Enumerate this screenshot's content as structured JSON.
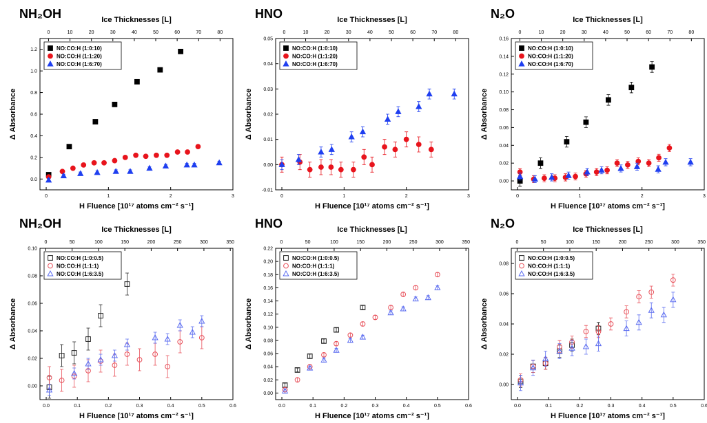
{
  "figure": {
    "xlabel_bottom": "H Fluence [10¹⁷ atoms cm⁻² s⁻¹]",
    "xlabel_top": "Ice Thicknesses [L]",
    "ylabel": "Δ Absorbance"
  },
  "colors": {
    "black_series": "#000000",
    "red_series": "#e8141c",
    "blue_series": "#1f3ff0",
    "open_black": "#222222",
    "open_red": "#e8505a",
    "open_blue": "#5b6cf0"
  },
  "chart_data": [
    {
      "type": "scatter",
      "title": "NH₂OH",
      "xlabel": "H Fluence [10¹⁷ atoms cm⁻² s⁻¹]",
      "x2label": "Ice Thicknesses [L]",
      "ylabel": "Δ Absorbance",
      "xlim": [
        -0.1,
        3
      ],
      "xticks": [
        "0",
        "1",
        "2",
        "3"
      ],
      "x2lim": [
        -4,
        86
      ],
      "x2ticks": [
        "0",
        "10",
        "20",
        "30",
        "40",
        "50",
        "60",
        "70",
        "80"
      ],
      "ylim": [
        -0.1,
        1.3
      ],
      "yticks": [
        "0.0",
        "0.2",
        "0.4",
        "0.6",
        "0.8",
        "1.0",
        "1.2"
      ],
      "legend_position": "top-left",
      "series": [
        {
          "name": "NO:CO:H (1:0:10)",
          "marker": "square",
          "filled": true,
          "color": "#000000",
          "x": [
            0.04,
            0.37,
            0.79,
            1.1,
            1.46,
            1.83,
            2.16
          ],
          "y": [
            0.04,
            0.3,
            0.53,
            0.69,
            0.9,
            1.01,
            1.18
          ],
          "err": [
            0.015,
            0.015,
            0.015,
            0.015,
            0.015,
            0.015,
            0.015
          ]
        },
        {
          "name": "NO:CO:H (1:1:20)",
          "marker": "circle",
          "filled": true,
          "color": "#e8141c",
          "x": [
            0.04,
            0.26,
            0.43,
            0.6,
            0.77,
            0.93,
            1.1,
            1.27,
            1.44,
            1.6,
            1.77,
            1.94,
            2.11,
            2.27,
            2.44
          ],
          "y": [
            0.02,
            0.07,
            0.1,
            0.13,
            0.15,
            0.15,
            0.17,
            0.2,
            0.22,
            0.21,
            0.22,
            0.22,
            0.25,
            0.25,
            0.3
          ],
          "err": [
            0.015,
            0.015,
            0.015,
            0.015,
            0.015,
            0.015,
            0.015,
            0.015,
            0.015,
            0.015,
            0.015,
            0.015,
            0.015,
            0.015,
            0.015
          ]
        },
        {
          "name": "NO:CO:H (1:6:70)",
          "marker": "triangle",
          "filled": true,
          "color": "#1f3ff0",
          "x": [
            0.04,
            0.28,
            0.55,
            0.82,
            1.12,
            1.35,
            1.66,
            1.92,
            2.26,
            2.38,
            2.78
          ],
          "y": [
            -0.01,
            0.03,
            0.05,
            0.06,
            0.07,
            0.07,
            0.1,
            0.12,
            0.13,
            0.13,
            0.15
          ],
          "err": [
            0.015,
            0.015,
            0.015,
            0.015,
            0.015,
            0.015,
            0.015,
            0.015,
            0.015,
            0.015,
            0.015
          ]
        }
      ]
    },
    {
      "type": "scatter",
      "title": "HNO",
      "xlabel": "H Fluence [10¹⁷ atoms cm⁻² s⁻¹]",
      "x2label": "Ice Thicknesses [L]",
      "ylabel": "Δ Absorbance",
      "xlim": [
        -0.1,
        3
      ],
      "xticks": [
        "0",
        "1",
        "2",
        "3"
      ],
      "x2lim": [
        -4,
        86
      ],
      "x2ticks": [
        "0",
        "10",
        "20",
        "30",
        "40",
        "50",
        "60",
        "70",
        "80"
      ],
      "ylim": [
        -0.01,
        0.05
      ],
      "yticks": [
        "-0.01",
        "0.00",
        "0.01",
        "0.02",
        "0.03",
        "0.04",
        "0.05"
      ],
      "legend_position": "top-left",
      "series": [
        {
          "name": "NO:CO:H (1:0:10)",
          "marker": "square",
          "filled": true,
          "color": "#000000",
          "x": [],
          "y": [],
          "err": []
        },
        {
          "name": "NO:CO:H (1:1:20)",
          "marker": "circle",
          "filled": true,
          "color": "#e8141c",
          "x": [
            0.0,
            0.29,
            0.45,
            0.63,
            0.79,
            0.95,
            1.15,
            1.32,
            1.45,
            1.65,
            1.82,
            2.0,
            2.2,
            2.4
          ],
          "y": [
            0.0,
            0.001,
            -0.002,
            -0.001,
            -0.001,
            -0.002,
            -0.002,
            0.003,
            0.0,
            0.007,
            0.006,
            0.01,
            0.008,
            0.006
          ],
          "err": [
            0.003,
            0.003,
            0.003,
            0.003,
            0.003,
            0.003,
            0.003,
            0.003,
            0.003,
            0.003,
            0.003,
            0.003,
            0.003,
            0.003
          ]
        },
        {
          "name": "NO:CO:H (1:6:70)",
          "marker": "triangle",
          "filled": true,
          "color": "#1f3ff0",
          "x": [
            0.0,
            0.27,
            0.63,
            0.8,
            1.12,
            1.3,
            1.7,
            1.87,
            2.2,
            2.37,
            2.77
          ],
          "y": [
            0.0,
            0.002,
            0.005,
            0.006,
            0.011,
            0.013,
            0.018,
            0.021,
            0.023,
            0.028,
            0.028
          ],
          "err": [
            0.002,
            0.002,
            0.002,
            0.002,
            0.002,
            0.002,
            0.002,
            0.002,
            0.002,
            0.002,
            0.002
          ]
        }
      ]
    },
    {
      "type": "scatter",
      "title": "N₂O",
      "xlabel": "H Fluence [10¹⁷ atoms cm⁻² s⁻¹]",
      "x2label": "Ice Thicknesses [L]",
      "ylabel": "Δ Absorbance",
      "xlim": [
        -0.1,
        3
      ],
      "xticks": [
        "0",
        "1",
        "2",
        "3"
      ],
      "x2lim": [
        -4,
        86
      ],
      "x2ticks": [
        "0",
        "10",
        "20",
        "30",
        "40",
        "50",
        "60",
        "70",
        "80"
      ],
      "ylim": [
        -0.01,
        0.16
      ],
      "yticks": [
        "0.00",
        "0.02",
        "0.04",
        "0.06",
        "0.08",
        "0.10",
        "0.12",
        "0.14",
        "0.16"
      ],
      "legend_position": "top-left",
      "series": [
        {
          "name": "NO:CO:H (1:0:10)",
          "marker": "square",
          "filled": true,
          "color": "#000000",
          "x": [
            0.04,
            0.37,
            0.79,
            1.1,
            1.46,
            1.83,
            2.16
          ],
          "y": [
            0.0,
            0.02,
            0.044,
            0.066,
            0.091,
            0.105,
            0.128
          ],
          "err": [
            0.006,
            0.006,
            0.006,
            0.006,
            0.006,
            0.006,
            0.006
          ]
        },
        {
          "name": "NO:CO:H (1:1:20)",
          "marker": "circle",
          "filled": true,
          "color": "#e8141c",
          "x": [
            0.04,
            0.26,
            0.43,
            0.6,
            0.77,
            0.93,
            1.1,
            1.27,
            1.44,
            1.6,
            1.77,
            1.94,
            2.11,
            2.27,
            2.44
          ],
          "y": [
            0.01,
            0.002,
            0.003,
            0.003,
            0.004,
            0.005,
            0.008,
            0.01,
            0.012,
            0.02,
            0.018,
            0.022,
            0.02,
            0.026,
            0.037
          ],
          "err": [
            0.004,
            0.004,
            0.004,
            0.004,
            0.004,
            0.004,
            0.004,
            0.004,
            0.004,
            0.004,
            0.004,
            0.004,
            0.004,
            0.004,
            0.004
          ]
        },
        {
          "name": "NO:CO:H (1:6:70)",
          "marker": "triangle",
          "filled": true,
          "color": "#1f3ff0",
          "x": [
            0.04,
            0.28,
            0.55,
            0.82,
            1.12,
            1.35,
            1.66,
            1.92,
            2.26,
            2.38,
            2.78
          ],
          "y": [
            0.005,
            0.002,
            0.004,
            0.006,
            0.01,
            0.012,
            0.014,
            0.016,
            0.013,
            0.021,
            0.021
          ],
          "err": [
            0.004,
            0.004,
            0.004,
            0.004,
            0.004,
            0.004,
            0.004,
            0.004,
            0.004,
            0.004,
            0.004
          ]
        }
      ]
    },
    {
      "type": "scatter",
      "title": "NH₂OH",
      "xlabel": "H Fluence [10¹⁷ atoms cm⁻² s⁻¹]",
      "x2label": "Ice Thicknesses [L]",
      "ylabel": "Δ Absorbance",
      "xlim": [
        -0.02,
        0.6
      ],
      "xticks": [
        "0.0",
        "0.1",
        "0.2",
        "0.3",
        "0.4",
        "0.5",
        "0.6"
      ],
      "x2lim": [
        -11,
        355
      ],
      "x2ticks": [
        "0",
        "50",
        "100",
        "150",
        "200",
        "250",
        "300",
        "350"
      ],
      "ylim": [
        -0.01,
        0.1
      ],
      "yticks": [
        "0.00",
        "0.02",
        "0.04",
        "0.06",
        "0.08",
        "0.10"
      ],
      "legend_position": "top-left",
      "series": [
        {
          "name": "NO:CO:H (1:0:0.5)",
          "marker": "square",
          "filled": false,
          "color": "#222222",
          "x": [
            0.01,
            0.05,
            0.09,
            0.135,
            0.175,
            0.26
          ],
          "y": [
            -0.001,
            0.022,
            0.024,
            0.034,
            0.051,
            0.074
          ],
          "err": [
            0.008,
            0.008,
            0.008,
            0.008,
            0.008,
            0.008
          ]
        },
        {
          "name": "NO:CO:H (1:1:1)",
          "marker": "circle",
          "filled": false,
          "color": "#e8505a",
          "x": [
            0.01,
            0.05,
            0.09,
            0.135,
            0.175,
            0.22,
            0.26,
            0.3,
            0.35,
            0.39,
            0.43,
            0.5
          ],
          "y": [
            0.006,
            0.004,
            0.007,
            0.011,
            0.018,
            0.015,
            0.023,
            0.019,
            0.023,
            0.014,
            0.032,
            0.035
          ],
          "err": [
            0.008,
            0.008,
            0.008,
            0.008,
            0.008,
            0.008,
            0.008,
            0.008,
            0.008,
            0.008,
            0.008,
            0.008
          ]
        },
        {
          "name": "NO:CO:H (1:6:3.5)",
          "marker": "triangle",
          "filled": false,
          "color": "#5b6cf0",
          "x": [
            0.01,
            0.09,
            0.135,
            0.175,
            0.22,
            0.26,
            0.35,
            0.39,
            0.43,
            0.47,
            0.5
          ],
          "y": [
            -0.003,
            0.009,
            0.016,
            0.019,
            0.022,
            0.03,
            0.035,
            0.034,
            0.044,
            0.039,
            0.047
          ],
          "err": [
            0.004,
            0.004,
            0.004,
            0.004,
            0.004,
            0.004,
            0.004,
            0.004,
            0.004,
            0.004,
            0.004
          ]
        }
      ]
    },
    {
      "type": "scatter",
      "title": "HNO",
      "xlabel": "H Fluence [10¹⁷ atoms cm⁻² s⁻¹]",
      "x2label": "Ice Thicknesses [L]",
      "ylabel": "Δ Absorbance",
      "xlim": [
        -0.02,
        0.6
      ],
      "xticks": [
        "0.0",
        "0.1",
        "0.2",
        "0.3",
        "0.4",
        "0.5",
        "0.6"
      ],
      "x2lim": [
        -11,
        355
      ],
      "x2ticks": [
        "0",
        "50",
        "100",
        "150",
        "200",
        "250",
        "300",
        "350"
      ],
      "ylim": [
        -0.01,
        0.22
      ],
      "yticks": [
        "0.00",
        "0.02",
        "0.04",
        "0.06",
        "0.08",
        "0.10",
        "0.12",
        "0.14",
        "0.16",
        "0.18",
        "0.20",
        "0.22"
      ],
      "legend_position": "top-left",
      "series": [
        {
          "name": "NO:CO:H (1:0:0.5)",
          "marker": "square",
          "filled": false,
          "color": "#222222",
          "x": [
            0.01,
            0.05,
            0.09,
            0.135,
            0.175,
            0.26
          ],
          "y": [
            0.012,
            0.035,
            0.056,
            0.079,
            0.096,
            0.13
          ],
          "err": [
            0.003,
            0.003,
            0.003,
            0.003,
            0.003,
            0.003
          ]
        },
        {
          "name": "NO:CO:H (1:1:1)",
          "marker": "circle",
          "filled": false,
          "color": "#e8505a",
          "x": [
            0.01,
            0.05,
            0.09,
            0.135,
            0.175,
            0.22,
            0.26,
            0.3,
            0.35,
            0.39,
            0.43,
            0.5
          ],
          "y": [
            0.005,
            0.02,
            0.04,
            0.058,
            0.075,
            0.088,
            0.105,
            0.115,
            0.13,
            0.15,
            0.16,
            0.18
          ],
          "err": [
            0.003,
            0.003,
            0.003,
            0.003,
            0.003,
            0.003,
            0.003,
            0.003,
            0.003,
            0.003,
            0.003,
            0.003
          ]
        },
        {
          "name": "NO:CO:H (1:6:3.5)",
          "marker": "triangle",
          "filled": false,
          "color": "#5b6cf0",
          "x": [
            0.01,
            0.09,
            0.135,
            0.175,
            0.22,
            0.26,
            0.35,
            0.39,
            0.43,
            0.47,
            0.5
          ],
          "y": [
            0.003,
            0.038,
            0.05,
            0.065,
            0.08,
            0.085,
            0.122,
            0.128,
            0.143,
            0.145,
            0.16
          ],
          "err": [
            0.003,
            0.003,
            0.003,
            0.003,
            0.003,
            0.003,
            0.003,
            0.003,
            0.003,
            0.003,
            0.003
          ]
        }
      ]
    },
    {
      "type": "scatter",
      "title": "N₂O",
      "xlabel": "H Fluence [10¹⁷ atoms cm⁻² s⁻¹]",
      "x2label": "Ice Thicknesses [L]",
      "ylabel": "Δ Absorbance",
      "xlim": [
        -0.02,
        0.6
      ],
      "xticks": [
        "0.0",
        "0.1",
        "0.2",
        "0.3",
        "0.4",
        "0.5",
        "0.6"
      ],
      "x2lim": [
        -11,
        355
      ],
      "x2ticks": [
        "0",
        "50",
        "100",
        "150",
        "200",
        "250",
        "300",
        "350"
      ],
      "ylim": [
        -0.01,
        0.09
      ],
      "yticks": [
        "0.00",
        "0.02",
        "0.04",
        "0.06",
        "0.08"
      ],
      "legend_position": "top-left",
      "series": [
        {
          "name": "NO:CO:H (1:0:0.5)",
          "marker": "square",
          "filled": false,
          "color": "#222222",
          "x": [
            0.01,
            0.05,
            0.09,
            0.135,
            0.175,
            0.26
          ],
          "y": [
            0.002,
            0.012,
            0.014,
            0.022,
            0.026,
            0.037
          ],
          "err": [
            0.004,
            0.004,
            0.004,
            0.004,
            0.004,
            0.004
          ]
        },
        {
          "name": "NO:CO:H (1:1:1)",
          "marker": "circle",
          "filled": false,
          "color": "#e8505a",
          "x": [
            0.01,
            0.05,
            0.09,
            0.135,
            0.175,
            0.22,
            0.26,
            0.3,
            0.35,
            0.39,
            0.43,
            0.5
          ],
          "y": [
            0.003,
            0.012,
            0.014,
            0.025,
            0.028,
            0.035,
            0.035,
            0.04,
            0.048,
            0.058,
            0.061,
            0.069
          ],
          "err": [
            0.004,
            0.004,
            0.004,
            0.004,
            0.004,
            0.004,
            0.004,
            0.004,
            0.004,
            0.004,
            0.004,
            0.004
          ]
        },
        {
          "name": "NO:CO:H (1:6:3.5)",
          "marker": "triangle",
          "filled": false,
          "color": "#5b6cf0",
          "x": [
            0.01,
            0.05,
            0.09,
            0.135,
            0.175,
            0.22,
            0.26,
            0.35,
            0.39,
            0.43,
            0.47,
            0.5
          ],
          "y": [
            0.001,
            0.011,
            0.017,
            0.022,
            0.024,
            0.025,
            0.027,
            0.037,
            0.041,
            0.049,
            0.046,
            0.056
          ],
          "err": [
            0.005,
            0.005,
            0.005,
            0.005,
            0.005,
            0.005,
            0.005,
            0.005,
            0.005,
            0.005,
            0.005,
            0.005
          ]
        }
      ]
    }
  ]
}
